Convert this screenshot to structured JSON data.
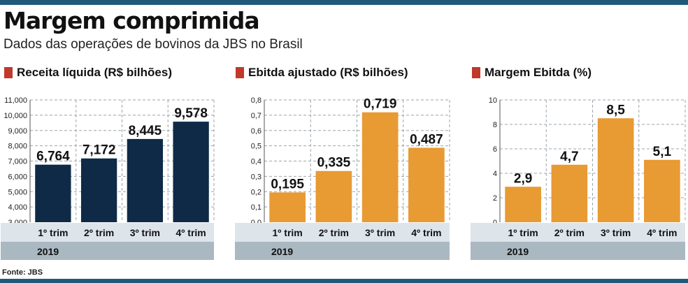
{
  "header": {
    "title": "Margem comprimida",
    "subtitle": "Dados das operações de bovinos da JBS no Brasil"
  },
  "footer": {
    "source": "Fonte: JBS"
  },
  "colors": {
    "navy": "#0e2a47",
    "orange": "#e89a33",
    "band": "#aab8c2",
    "band_light": "#dde4ea",
    "accent": "#c0392b",
    "rule": "#1f5a7a"
  },
  "chart_data": [
    {
      "type": "bar",
      "title": "Receita líquida (R$ bilhões)",
      "categories": [
        "1º trim",
        "2º trim",
        "3º trim",
        "4º trim"
      ],
      "group_label": "2019",
      "values": [
        6.764,
        7.172,
        8.445,
        9.578
      ],
      "value_labels": [
        "6,764",
        "7,172",
        "8,445",
        "9,578"
      ],
      "ylim": [
        3.0,
        11.0
      ],
      "yticks": [
        3.0,
        4.0,
        5.0,
        6.0,
        7.0,
        8.0,
        9.0,
        10.0,
        11.0
      ],
      "ytick_labels": [
        "3,000",
        "4,000",
        "5,000",
        "6,000",
        "7,000",
        "8,000",
        "9,000",
        "10,000",
        "11,000"
      ],
      "color": "#0e2a47",
      "grid": true
    },
    {
      "type": "bar",
      "title": "Ebitda ajustado (R$ bilhões)",
      "categories": [
        "1º trim",
        "2º trim",
        "3º trim",
        "4º trim"
      ],
      "group_label": "2019",
      "values": [
        0.195,
        0.335,
        0.719,
        0.487
      ],
      "value_labels": [
        "0,195",
        "0,335",
        "0,719",
        "0,487"
      ],
      "ylim": [
        0.0,
        0.8
      ],
      "yticks": [
        0.0,
        0.1,
        0.2,
        0.3,
        0.4,
        0.5,
        0.6,
        0.7,
        0.8
      ],
      "ytick_labels": [
        "0,0",
        "0,1",
        "0,2",
        "0,3",
        "0,4",
        "0,5",
        "0,6",
        "0,7",
        "0,8"
      ],
      "color": "#e89a33",
      "grid": true
    },
    {
      "type": "bar",
      "title": "Margem Ebitda (%)",
      "categories": [
        "1º trim",
        "2º trim",
        "3º trim",
        "4º trim"
      ],
      "group_label": "2019",
      "values": [
        2.9,
        4.7,
        8.5,
        5.1
      ],
      "value_labels": [
        "2,9",
        "4,7",
        "8,5",
        "5,1"
      ],
      "ylim": [
        0,
        10
      ],
      "yticks": [
        0,
        2,
        4,
        6,
        8,
        10
      ],
      "ytick_labels": [
        "0",
        "2",
        "4",
        "6",
        "8",
        "10"
      ],
      "color": "#e89a33",
      "grid": true
    }
  ]
}
